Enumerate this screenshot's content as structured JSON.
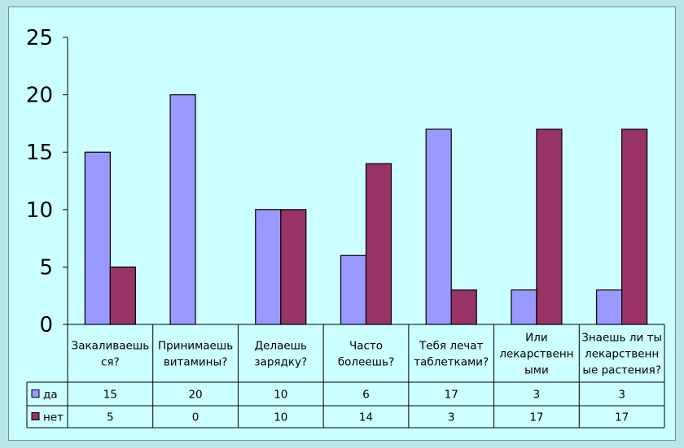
{
  "chart_data": {
    "type": "bar",
    "categories": [
      [
        "Закаливаешь",
        "ся?"
      ],
      [
        "Принимаешь",
        "витамины?"
      ],
      [
        "Делаешь",
        "зарядку?"
      ],
      [
        "Часто",
        "болеешь?"
      ],
      [
        "Тебя лечат",
        "таблетками?"
      ],
      [
        "Или",
        "лекарственн",
        "ыми"
      ],
      [
        "Знаешь ли ты",
        "лекарственн",
        "ые растения?"
      ]
    ],
    "series": [
      {
        "name": "да",
        "color": "#9999ff",
        "values": [
          15,
          20,
          10,
          6,
          17,
          3,
          3
        ]
      },
      {
        "name": "нет",
        "color": "#993366",
        "values": [
          5,
          0,
          10,
          14,
          3,
          17,
          17
        ]
      }
    ],
    "yticks": [
      0,
      5,
      10,
      15,
      20,
      25
    ],
    "ylim": [
      0,
      25
    ],
    "grid": false,
    "legend": "data-table"
  }
}
